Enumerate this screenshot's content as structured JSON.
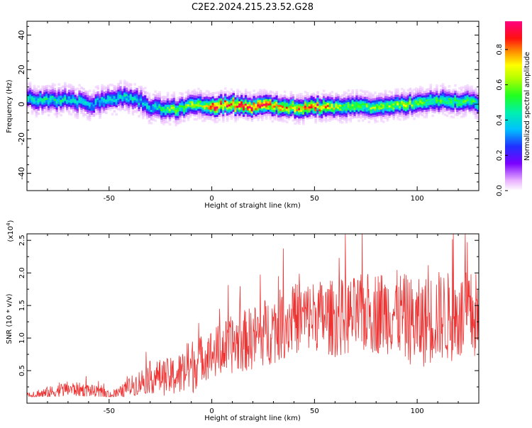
{
  "title": "C2E2.2024.215.23.52.G28",
  "colors": {
    "snr_line": "#ee3333",
    "axis": "#000000",
    "background": "#ffffff"
  },
  "chart_data": [
    {
      "type": "heatmap",
      "title": "C2E2.2024.215.23.52.G28",
      "xlabel": "Height of straight line (km)",
      "ylabel": "Frequency (Hz)",
      "xlim": [
        -90,
        130
      ],
      "ylim": [
        -50,
        48
      ],
      "xticks": [
        -50,
        0,
        50,
        100
      ],
      "yticks": [
        -40,
        -20,
        0,
        20,
        40
      ],
      "colorbar": {
        "label": "Normalized spectral amplitude",
        "range": [
          0,
          0.96
        ],
        "ticks": [
          "0.0",
          "0.2",
          "0.4",
          "0.6",
          "0.8"
        ],
        "colormap": "rainbow (white-violet-blue-cyan-green-yellow-orange-red-magenta)"
      },
      "ridge": {
        "x": [
          -90,
          -80,
          -70,
          -60,
          -50,
          -45,
          -40,
          -35,
          -30,
          -25,
          -20,
          -15,
          -10,
          -5,
          0,
          10,
          20,
          30,
          40,
          50,
          60,
          70,
          80,
          90,
          100,
          110,
          120,
          130
        ],
        "y": [
          3,
          2,
          3,
          0,
          3,
          4,
          4,
          2,
          -2,
          -2,
          -3,
          -2,
          1,
          -1,
          -1,
          0,
          -1,
          -1,
          -2,
          -1,
          -2,
          -1,
          -1,
          0,
          1,
          2,
          2,
          1
        ],
        "peak_amplitude": [
          0.4,
          0.45,
          0.4,
          0.35,
          0.4,
          0.4,
          0.4,
          0.4,
          0.35,
          0.45,
          0.55,
          0.5,
          0.6,
          0.55,
          0.85,
          0.8,
          0.85,
          0.75,
          0.7,
          0.8,
          0.6,
          0.55,
          0.55,
          0.6,
          0.55,
          0.5,
          0.5,
          0.45
        ]
      }
    },
    {
      "type": "line",
      "xlabel": "Height of straight line (km)",
      "ylabel": "SNR (10 * v/v)",
      "y_multiplier": "(x10",
      "y_multiplier_exp": "4",
      "y_multiplier_close": ")",
      "xlim": [
        -90,
        130
      ],
      "ylim": [
        0,
        2.6
      ],
      "xticks": [
        -50,
        0,
        50,
        100
      ],
      "yticks": [
        "0.5",
        "1.0",
        "1.5",
        "2.0",
        "2.5"
      ],
      "series": [
        {
          "trend_x": [
            -90,
            -80,
            -70,
            -60,
            -50,
            -45,
            -40,
            -30,
            -20,
            -15,
            -10,
            -5,
            0,
            10,
            20,
            30,
            40,
            50,
            60,
            70,
            80,
            90,
            100,
            110,
            120,
            130
          ],
          "trend_y": [
            0.12,
            0.15,
            0.22,
            0.2,
            0.12,
            0.15,
            0.25,
            0.4,
            0.4,
            0.45,
            0.55,
            0.7,
            0.75,
            0.9,
            1.0,
            1.15,
            1.3,
            1.35,
            1.3,
            1.35,
            1.4,
            1.4,
            1.2,
            1.35,
            1.3,
            1.35
          ],
          "spread_y": [
            0.08,
            0.1,
            0.12,
            0.1,
            0.08,
            0.1,
            0.15,
            0.25,
            0.3,
            0.35,
            0.45,
            0.35,
            0.4,
            0.45,
            0.5,
            0.55,
            0.55,
            0.55,
            0.6,
            0.6,
            0.65,
            0.65,
            0.7,
            0.7,
            0.7,
            0.7
          ],
          "peak_y_max": 2.6,
          "min_y": 0.1
        }
      ]
    }
  ]
}
